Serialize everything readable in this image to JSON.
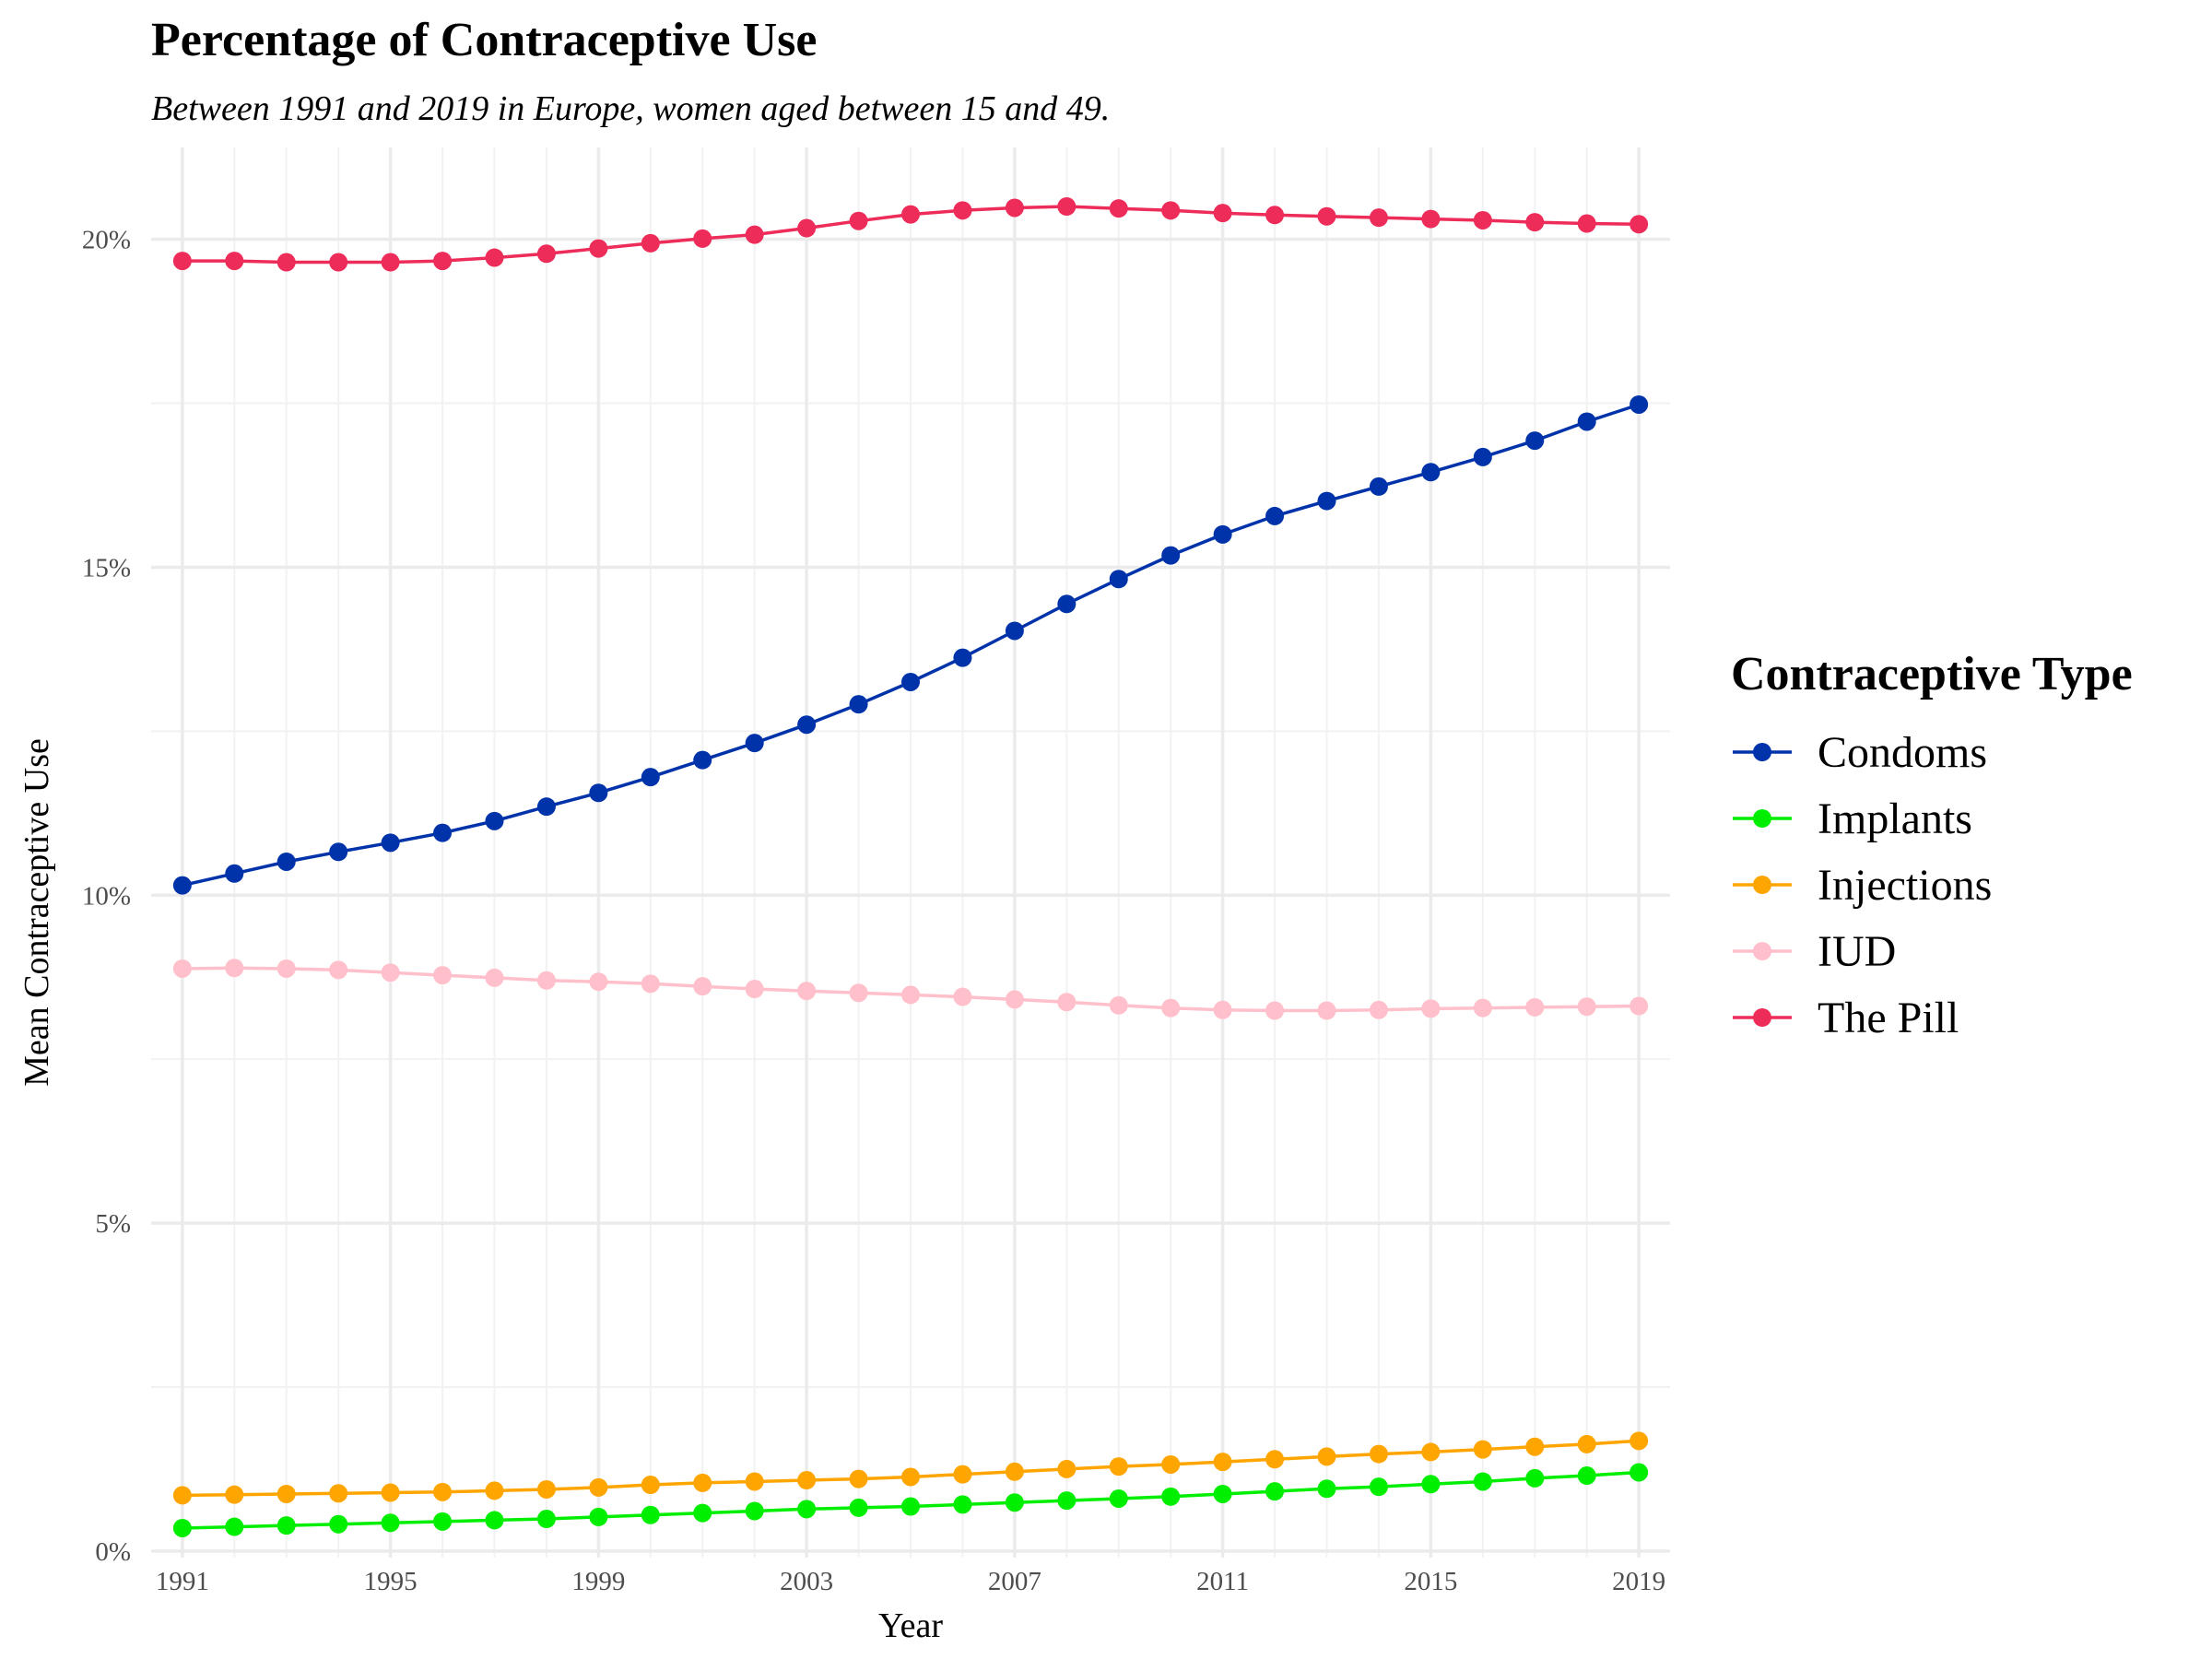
{
  "chart_data": {
    "type": "line",
    "title": "Percentage of Contraceptive Use",
    "subtitle": "Between 1991 and 2019 in Europe, women aged between 15 and 49.",
    "xlabel": "Year",
    "ylabel": "Mean Contraceptive Use",
    "x": [
      1991,
      1992,
      1993,
      1994,
      1995,
      1996,
      1997,
      1998,
      1999,
      2000,
      2001,
      2002,
      2003,
      2004,
      2005,
      2006,
      2007,
      2008,
      2009,
      2010,
      2011,
      2012,
      2013,
      2014,
      2015,
      2016,
      2017,
      2018,
      2019
    ],
    "x_ticks": [
      1991,
      1995,
      1999,
      2003,
      2007,
      2011,
      2015,
      2019
    ],
    "x_tick_labels": [
      "1991",
      "1995",
      "1999",
      "2003",
      "2007",
      "2011",
      "2015",
      "2019"
    ],
    "xlim": [
      1990.4,
      2019.6
    ],
    "ylim": [
      -0.1,
      21.4
    ],
    "y_ticks": [
      0,
      5,
      10,
      15,
      20
    ],
    "y_tick_labels": [
      "0%",
      "5%",
      "10%",
      "15%",
      "20%"
    ],
    "grid": true,
    "legend_position": "right",
    "legend_title": "Contraceptive Type",
    "series": [
      {
        "name": "Condoms",
        "color": "#0033AA",
        "values": [
          10.15,
          10.33,
          10.51,
          10.66,
          10.8,
          10.95,
          11.13,
          11.35,
          11.56,
          11.8,
          12.06,
          12.32,
          12.6,
          12.91,
          13.25,
          13.62,
          14.03,
          14.44,
          14.82,
          15.18,
          15.5,
          15.78,
          16.01,
          16.23,
          16.45,
          16.68,
          16.93,
          17.22,
          17.48
        ]
      },
      {
        "name": "Implants",
        "color": "#00EE00",
        "values": [
          0.35,
          0.37,
          0.39,
          0.41,
          0.43,
          0.45,
          0.47,
          0.49,
          0.52,
          0.55,
          0.58,
          0.61,
          0.64,
          0.66,
          0.68,
          0.71,
          0.74,
          0.77,
          0.8,
          0.83,
          0.87,
          0.91,
          0.95,
          0.98,
          1.02,
          1.06,
          1.11,
          1.15,
          1.2
        ]
      },
      {
        "name": "Injections",
        "color": "#FFA500",
        "values": [
          0.85,
          0.86,
          0.87,
          0.88,
          0.89,
          0.9,
          0.92,
          0.94,
          0.97,
          1.01,
          1.04,
          1.06,
          1.08,
          1.1,
          1.13,
          1.17,
          1.21,
          1.25,
          1.29,
          1.32,
          1.36,
          1.4,
          1.44,
          1.48,
          1.51,
          1.55,
          1.59,
          1.63,
          1.68
        ]
      },
      {
        "name": "IUD",
        "color": "#FFC0CB",
        "values": [
          8.88,
          8.89,
          8.88,
          8.86,
          8.82,
          8.78,
          8.74,
          8.7,
          8.68,
          8.65,
          8.61,
          8.57,
          8.54,
          8.51,
          8.48,
          8.45,
          8.41,
          8.37,
          8.32,
          8.28,
          8.25,
          8.24,
          8.24,
          8.25,
          8.27,
          8.28,
          8.29,
          8.3,
          8.31
        ]
      },
      {
        "name": "The Pill",
        "color": "#EE2C5A",
        "values": [
          19.67,
          19.67,
          19.65,
          19.65,
          19.65,
          19.67,
          19.72,
          19.78,
          19.86,
          19.94,
          20.01,
          20.07,
          20.17,
          20.28,
          20.38,
          20.44,
          20.48,
          20.5,
          20.47,
          20.44,
          20.4,
          20.37,
          20.35,
          20.33,
          20.31,
          20.29,
          20.26,
          20.24,
          20.23
        ]
      }
    ]
  }
}
